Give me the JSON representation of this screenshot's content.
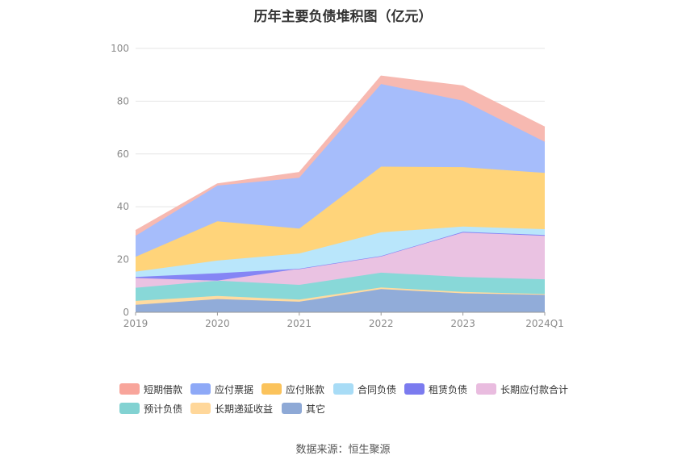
{
  "chart_data": {
    "type": "area",
    "stacked": true,
    "title": "历年主要负债堆积图（亿元）",
    "categories": [
      "2019",
      "2020",
      "2021",
      "2022",
      "2023",
      "2024Q1"
    ],
    "ylim": [
      0,
      100
    ],
    "yticks": [
      0,
      20,
      40,
      60,
      80,
      100
    ],
    "grid": true,
    "legend_position": "bottom",
    "series": [
      {
        "name": "其它",
        "color": "#91acd9",
        "values": [
          2.8,
          5.0,
          4.0,
          8.8,
          7.2,
          6.6
        ]
      },
      {
        "name": "长期递延收益",
        "color": "#ffdba0",
        "values": [
          1.5,
          1.2,
          0.8,
          0.6,
          0.5,
          0.3
        ]
      },
      {
        "name": "预计负债",
        "color": "#88d8d8",
        "values": [
          5.0,
          5.8,
          5.6,
          5.6,
          5.7,
          5.6
        ]
      },
      {
        "name": "长期应付款合计",
        "color": "#eac2e2",
        "values": [
          3.7,
          0.0,
          6.1,
          6.3,
          16.8,
          16.5
        ]
      },
      {
        "name": "租赁负债",
        "color": "#8585f5",
        "values": [
          0.4,
          2.8,
          0.0,
          0.0,
          0.3,
          0.3
        ]
      },
      {
        "name": "合同负债",
        "color": "#b9e6fb",
        "values": [
          2.0,
          4.8,
          5.8,
          9.0,
          2.0,
          2.2
        ]
      },
      {
        "name": "应付账款",
        "color": "#ffd47a",
        "values": [
          5.6,
          14.9,
          9.4,
          24.9,
          22.5,
          21.3
        ]
      },
      {
        "name": "应付票据",
        "color": "#a6bdfb",
        "values": [
          8.0,
          13.5,
          19.3,
          31.3,
          25.2,
          11.8
        ]
      },
      {
        "name": "短期借款",
        "color": "#f7b9b1",
        "values": [
          2.0,
          0.7,
          2.0,
          3.0,
          5.6,
          5.6
        ]
      }
    ]
  },
  "legend_order": [
    "短期借款",
    "应付票据",
    "应付账款",
    "合同负债",
    "租赁负债",
    "长期应付款合计",
    "预计负债",
    "长期递延收益",
    "其它"
  ],
  "legend_colors": {
    "短期借款": "#f8a59b",
    "应付票据": "#8ea9f7",
    "应付账款": "#fbc35c",
    "合同负债": "#a8dcf6",
    "租赁负债": "#7b7bef",
    "长期应付款合计": "#e9bcdf",
    "预计负债": "#82d2d2",
    "长期递延收益": "#ffd79a",
    "其它": "#8ea9d6"
  },
  "source": "数据来源：恒生聚源"
}
